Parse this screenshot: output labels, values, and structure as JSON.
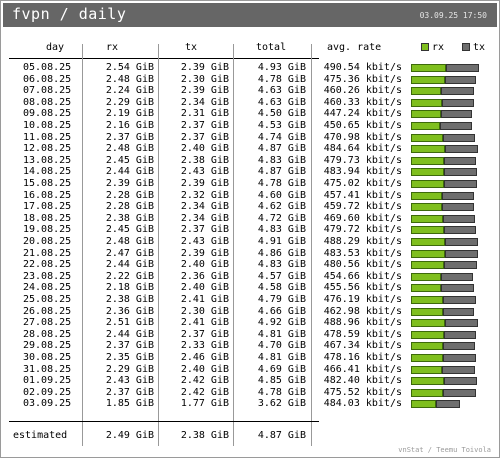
{
  "header": {
    "title": "fvpn / daily",
    "datetime": "03.09.25 17:50"
  },
  "columns": {
    "day": "day",
    "rx": "rx",
    "tx": "tx",
    "total": "total",
    "rate": "avg. rate"
  },
  "legend": {
    "rx": "rx",
    "tx": "tx"
  },
  "colors": {
    "rx": "#7fbf1e",
    "tx": "#6e6e6e",
    "titlebar": "#666666"
  },
  "rows": [
    {
      "day": "05.08.25",
      "rx": "2.54 GiB",
      "tx": "2.39 GiB",
      "total": "4.93 GiB",
      "rate": "490.54 kbit/s",
      "rxv": 2.54,
      "txv": 2.39
    },
    {
      "day": "06.08.25",
      "rx": "2.48 GiB",
      "tx": "2.30 GiB",
      "total": "4.78 GiB",
      "rate": "475.36 kbit/s",
      "rxv": 2.48,
      "txv": 2.3
    },
    {
      "day": "07.08.25",
      "rx": "2.24 GiB",
      "tx": "2.39 GiB",
      "total": "4.63 GiB",
      "rate": "460.26 kbit/s",
      "rxv": 2.24,
      "txv": 2.39
    },
    {
      "day": "08.08.25",
      "rx": "2.29 GiB",
      "tx": "2.34 GiB",
      "total": "4.63 GiB",
      "rate": "460.33 kbit/s",
      "rxv": 2.29,
      "txv": 2.34
    },
    {
      "day": "09.08.25",
      "rx": "2.19 GiB",
      "tx": "2.31 GiB",
      "total": "4.50 GiB",
      "rate": "447.24 kbit/s",
      "rxv": 2.19,
      "txv": 2.31
    },
    {
      "day": "10.08.25",
      "rx": "2.16 GiB",
      "tx": "2.37 GiB",
      "total": "4.53 GiB",
      "rate": "450.65 kbit/s",
      "rxv": 2.16,
      "txv": 2.37
    },
    {
      "day": "11.08.25",
      "rx": "2.37 GiB",
      "tx": "2.37 GiB",
      "total": "4.74 GiB",
      "rate": "470.98 kbit/s",
      "rxv": 2.37,
      "txv": 2.37
    },
    {
      "day": "12.08.25",
      "rx": "2.48 GiB",
      "tx": "2.40 GiB",
      "total": "4.87 GiB",
      "rate": "484.64 kbit/s",
      "rxv": 2.48,
      "txv": 2.4
    },
    {
      "day": "13.08.25",
      "rx": "2.45 GiB",
      "tx": "2.38 GiB",
      "total": "4.83 GiB",
      "rate": "479.73 kbit/s",
      "rxv": 2.45,
      "txv": 2.38
    },
    {
      "day": "14.08.25",
      "rx": "2.44 GiB",
      "tx": "2.43 GiB",
      "total": "4.87 GiB",
      "rate": "483.94 kbit/s",
      "rxv": 2.44,
      "txv": 2.43
    },
    {
      "day": "15.08.25",
      "rx": "2.39 GiB",
      "tx": "2.39 GiB",
      "total": "4.78 GiB",
      "rate": "475.02 kbit/s",
      "rxv": 2.39,
      "txv": 2.39
    },
    {
      "day": "16.08.25",
      "rx": "2.28 GiB",
      "tx": "2.32 GiB",
      "total": "4.60 GiB",
      "rate": "457.41 kbit/s",
      "rxv": 2.28,
      "txv": 2.32
    },
    {
      "day": "17.08.25",
      "rx": "2.28 GiB",
      "tx": "2.34 GiB",
      "total": "4.62 GiB",
      "rate": "459.72 kbit/s",
      "rxv": 2.28,
      "txv": 2.34
    },
    {
      "day": "18.08.25",
      "rx": "2.38 GiB",
      "tx": "2.34 GiB",
      "total": "4.72 GiB",
      "rate": "469.60 kbit/s",
      "rxv": 2.38,
      "txv": 2.34
    },
    {
      "day": "19.08.25",
      "rx": "2.45 GiB",
      "tx": "2.37 GiB",
      "total": "4.83 GiB",
      "rate": "479.72 kbit/s",
      "rxv": 2.45,
      "txv": 2.37
    },
    {
      "day": "20.08.25",
      "rx": "2.48 GiB",
      "tx": "2.43 GiB",
      "total": "4.91 GiB",
      "rate": "488.29 kbit/s",
      "rxv": 2.48,
      "txv": 2.43
    },
    {
      "day": "21.08.25",
      "rx": "2.47 GiB",
      "tx": "2.39 GiB",
      "total": "4.86 GiB",
      "rate": "483.53 kbit/s",
      "rxv": 2.47,
      "txv": 2.39
    },
    {
      "day": "22.08.25",
      "rx": "2.44 GiB",
      "tx": "2.40 GiB",
      "total": "4.83 GiB",
      "rate": "480.56 kbit/s",
      "rxv": 2.44,
      "txv": 2.4
    },
    {
      "day": "23.08.25",
      "rx": "2.22 GiB",
      "tx": "2.36 GiB",
      "total": "4.57 GiB",
      "rate": "454.66 kbit/s",
      "rxv": 2.22,
      "txv": 2.36
    },
    {
      "day": "24.08.25",
      "rx": "2.18 GiB",
      "tx": "2.40 GiB",
      "total": "4.58 GiB",
      "rate": "455.56 kbit/s",
      "rxv": 2.18,
      "txv": 2.4
    },
    {
      "day": "25.08.25",
      "rx": "2.38 GiB",
      "tx": "2.41 GiB",
      "total": "4.79 GiB",
      "rate": "476.19 kbit/s",
      "rxv": 2.38,
      "txv": 2.41
    },
    {
      "day": "26.08.25",
      "rx": "2.36 GiB",
      "tx": "2.30 GiB",
      "total": "4.66 GiB",
      "rate": "462.98 kbit/s",
      "rxv": 2.36,
      "txv": 2.3
    },
    {
      "day": "27.08.25",
      "rx": "2.51 GiB",
      "tx": "2.41 GiB",
      "total": "4.92 GiB",
      "rate": "488.96 kbit/s",
      "rxv": 2.51,
      "txv": 2.41
    },
    {
      "day": "28.08.25",
      "rx": "2.44 GiB",
      "tx": "2.37 GiB",
      "total": "4.81 GiB",
      "rate": "478.59 kbit/s",
      "rxv": 2.44,
      "txv": 2.37
    },
    {
      "day": "29.08.25",
      "rx": "2.37 GiB",
      "tx": "2.33 GiB",
      "total": "4.70 GiB",
      "rate": "467.34 kbit/s",
      "rxv": 2.37,
      "txv": 2.33
    },
    {
      "day": "30.08.25",
      "rx": "2.35 GiB",
      "tx": "2.46 GiB",
      "total": "4.81 GiB",
      "rate": "478.16 kbit/s",
      "rxv": 2.35,
      "txv": 2.46
    },
    {
      "day": "31.08.25",
      "rx": "2.29 GiB",
      "tx": "2.40 GiB",
      "total": "4.69 GiB",
      "rate": "466.41 kbit/s",
      "rxv": 2.29,
      "txv": 2.4
    },
    {
      "day": "01.09.25",
      "rx": "2.43 GiB",
      "tx": "2.42 GiB",
      "total": "4.85 GiB",
      "rate": "482.40 kbit/s",
      "rxv": 2.43,
      "txv": 2.42
    },
    {
      "day": "02.09.25",
      "rx": "2.37 GiB",
      "tx": "2.42 GiB",
      "total": "4.78 GiB",
      "rate": "475.52 kbit/s",
      "rxv": 2.37,
      "txv": 2.42
    },
    {
      "day": "03.09.25",
      "rx": "1.85 GiB",
      "tx": "1.77 GiB",
      "total": "3.62 GiB",
      "rate": "484.03 kbit/s",
      "rxv": 1.85,
      "txv": 1.77
    }
  ],
  "estimated": {
    "label": "estimated",
    "rx": "2.49 GiB",
    "tx": "2.38 GiB",
    "total": "4.87 GiB"
  },
  "footer": "vnStat / Teemu Toivola"
}
